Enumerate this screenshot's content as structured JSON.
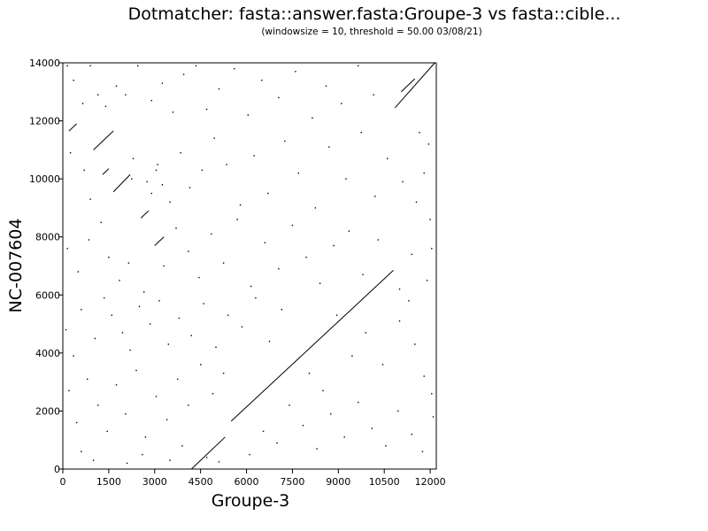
{
  "chart_data": {
    "type": "scatter",
    "title": "Dotmatcher: fasta::answer.fasta:Groupe-3 vs fasta::cible...",
    "subtitle": "(windowsize = 10, threshold = 50.00  03/08/21)",
    "xlabel": "Groupe-3",
    "ylabel": "NC-007604",
    "xlim": [
      0,
      12200
    ],
    "ylim": [
      0,
      14000
    ],
    "xticks": [
      "0",
      "1500",
      "3000",
      "4500",
      "6000",
      "7500",
      "9000",
      "10500",
      "12000"
    ],
    "xtick_values": [
      0,
      1500,
      3000,
      4500,
      6000,
      7500,
      9000,
      10500,
      12000
    ],
    "yticks": [
      "0",
      "2000",
      "4000",
      "6000",
      "8000",
      "10000",
      "12000",
      "14000"
    ],
    "ytick_values": [
      0,
      2000,
      4000,
      6000,
      8000,
      10000,
      12000,
      14000
    ],
    "grid": false,
    "segments": [
      {
        "x": [
          4200,
          5300
        ],
        "y": [
          0,
          1100
        ]
      },
      {
        "x": [
          5500,
          10800
        ],
        "y": [
          1650,
          6850
        ]
      },
      {
        "x": [
          10850,
          12150
        ],
        "y": [
          12450,
          14000
        ]
      },
      {
        "x": [
          1000,
          1650
        ],
        "y": [
          11000,
          11650
        ]
      },
      {
        "x": [
          1650,
          2200
        ],
        "y": [
          9550,
          10150
        ]
      },
      {
        "x": [
          200,
          450
        ],
        "y": [
          11650,
          11900
        ]
      },
      {
        "x": [
          3000,
          3300
        ],
        "y": [
          7700,
          8000
        ]
      },
      {
        "x": [
          2550,
          2800
        ],
        "y": [
          8650,
          8900
        ]
      },
      {
        "x": [
          1300,
          1500
        ],
        "y": [
          10150,
          10350
        ]
      },
      {
        "x": [
          11050,
          11500
        ],
        "y": [
          13000,
          13450
        ]
      }
    ],
    "points": [
      {
        "x": 150,
        "y": 13900
      },
      {
        "x": 350,
        "y": 13400
      },
      {
        "x": 650,
        "y": 12600
      },
      {
        "x": 900,
        "y": 13900
      },
      {
        "x": 1150,
        "y": 12900
      },
      {
        "x": 1400,
        "y": 12500
      },
      {
        "x": 1750,
        "y": 13200
      },
      {
        "x": 2050,
        "y": 12900
      },
      {
        "x": 2450,
        "y": 13900
      },
      {
        "x": 2900,
        "y": 12700
      },
      {
        "x": 3250,
        "y": 13300
      },
      {
        "x": 3600,
        "y": 12300
      },
      {
        "x": 3950,
        "y": 13600
      },
      {
        "x": 4350,
        "y": 13900
      },
      {
        "x": 4700,
        "y": 12400
      },
      {
        "x": 5100,
        "y": 13100
      },
      {
        "x": 5600,
        "y": 13800
      },
      {
        "x": 6050,
        "y": 12200
      },
      {
        "x": 6500,
        "y": 13400
      },
      {
        "x": 7050,
        "y": 12800
      },
      {
        "x": 7600,
        "y": 13700
      },
      {
        "x": 8150,
        "y": 12100
      },
      {
        "x": 8600,
        "y": 13200
      },
      {
        "x": 9100,
        "y": 12600
      },
      {
        "x": 9650,
        "y": 13900
      },
      {
        "x": 10150,
        "y": 12900
      },
      {
        "x": 11650,
        "y": 11600
      },
      {
        "x": 11950,
        "y": 11200
      },
      {
        "x": 250,
        "y": 10900
      },
      {
        "x": 700,
        "y": 10300
      },
      {
        "x": 900,
        "y": 9300
      },
      {
        "x": 1250,
        "y": 8500
      },
      {
        "x": 2300,
        "y": 10700
      },
      {
        "x": 2750,
        "y": 9900
      },
      {
        "x": 3100,
        "y": 10500
      },
      {
        "x": 3500,
        "y": 9200
      },
      {
        "x": 3850,
        "y": 10900
      },
      {
        "x": 4150,
        "y": 9700
      },
      {
        "x": 4550,
        "y": 10300
      },
      {
        "x": 4950,
        "y": 11400
      },
      {
        "x": 5350,
        "y": 10500
      },
      {
        "x": 5800,
        "y": 9100
      },
      {
        "x": 6250,
        "y": 10800
      },
      {
        "x": 6700,
        "y": 9500
      },
      {
        "x": 7250,
        "y": 11300
      },
      {
        "x": 7700,
        "y": 10200
      },
      {
        "x": 8250,
        "y": 9000
      },
      {
        "x": 8700,
        "y": 11100
      },
      {
        "x": 9250,
        "y": 10000
      },
      {
        "x": 9750,
        "y": 11600
      },
      {
        "x": 10200,
        "y": 9400
      },
      {
        "x": 10600,
        "y": 10700
      },
      {
        "x": 11100,
        "y": 9900
      },
      {
        "x": 11550,
        "y": 9200
      },
      {
        "x": 12000,
        "y": 8600
      },
      {
        "x": 11800,
        "y": 10200
      },
      {
        "x": 150,
        "y": 7600
      },
      {
        "x": 500,
        "y": 6800
      },
      {
        "x": 850,
        "y": 7900
      },
      {
        "x": 1500,
        "y": 7300
      },
      {
        "x": 1850,
        "y": 6500
      },
      {
        "x": 2150,
        "y": 7100
      },
      {
        "x": 2650,
        "y": 6100
      },
      {
        "x": 3300,
        "y": 7000
      },
      {
        "x": 3700,
        "y": 8300
      },
      {
        "x": 4100,
        "y": 7500
      },
      {
        "x": 4450,
        "y": 6600
      },
      {
        "x": 4850,
        "y": 8100
      },
      {
        "x": 5250,
        "y": 7100
      },
      {
        "x": 5700,
        "y": 8600
      },
      {
        "x": 6150,
        "y": 6300
      },
      {
        "x": 6600,
        "y": 7800
      },
      {
        "x": 7050,
        "y": 6900
      },
      {
        "x": 7500,
        "y": 8400
      },
      {
        "x": 7950,
        "y": 7300
      },
      {
        "x": 8400,
        "y": 6400
      },
      {
        "x": 8850,
        "y": 7700
      },
      {
        "x": 9350,
        "y": 8200
      },
      {
        "x": 9800,
        "y": 6700
      },
      {
        "x": 10300,
        "y": 7900
      },
      {
        "x": 11000,
        "y": 6200
      },
      {
        "x": 11400,
        "y": 7400
      },
      {
        "x": 11900,
        "y": 6500
      },
      {
        "x": 12050,
        "y": 7600
      },
      {
        "x": 100,
        "y": 4800
      },
      {
        "x": 350,
        "y": 3900
      },
      {
        "x": 600,
        "y": 5500
      },
      {
        "x": 1050,
        "y": 4500
      },
      {
        "x": 1350,
        "y": 5900
      },
      {
        "x": 1600,
        "y": 5300
      },
      {
        "x": 1950,
        "y": 4700
      },
      {
        "x": 2200,
        "y": 4100
      },
      {
        "x": 2500,
        "y": 5600
      },
      {
        "x": 2850,
        "y": 5000
      },
      {
        "x": 3150,
        "y": 5800
      },
      {
        "x": 3450,
        "y": 4300
      },
      {
        "x": 3800,
        "y": 5200
      },
      {
        "x": 4200,
        "y": 4600
      },
      {
        "x": 4600,
        "y": 5700
      },
      {
        "x": 5000,
        "y": 4200
      },
      {
        "x": 5400,
        "y": 5300
      },
      {
        "x": 5850,
        "y": 4900
      },
      {
        "x": 6300,
        "y": 5900
      },
      {
        "x": 6750,
        "y": 4400
      },
      {
        "x": 7150,
        "y": 5500
      },
      {
        "x": 8050,
        "y": 3300
      },
      {
        "x": 8500,
        "y": 2700
      },
      {
        "x": 8950,
        "y": 5300
      },
      {
        "x": 9450,
        "y": 3900
      },
      {
        "x": 9900,
        "y": 4700
      },
      {
        "x": 10450,
        "y": 3600
      },
      {
        "x": 11000,
        "y": 5100
      },
      {
        "x": 11500,
        "y": 4300
      },
      {
        "x": 11800,
        "y": 3200
      },
      {
        "x": 12050,
        "y": 2600
      },
      {
        "x": 11300,
        "y": 5800
      },
      {
        "x": 200,
        "y": 2700
      },
      {
        "x": 450,
        "y": 1600
      },
      {
        "x": 800,
        "y": 3100
      },
      {
        "x": 1150,
        "y": 2200
      },
      {
        "x": 1450,
        "y": 1300
      },
      {
        "x": 1750,
        "y": 2900
      },
      {
        "x": 2050,
        "y": 1900
      },
      {
        "x": 2400,
        "y": 3400
      },
      {
        "x": 2700,
        "y": 1100
      },
      {
        "x": 3050,
        "y": 2500
      },
      {
        "x": 3400,
        "y": 1700
      },
      {
        "x": 3750,
        "y": 3100
      },
      {
        "x": 4100,
        "y": 2200
      },
      {
        "x": 4500,
        "y": 3600
      },
      {
        "x": 4900,
        "y": 2600
      },
      {
        "x": 5250,
        "y": 3300
      },
      {
        "x": 6100,
        "y": 500
      },
      {
        "x": 6550,
        "y": 1300
      },
      {
        "x": 7000,
        "y": 900
      },
      {
        "x": 7400,
        "y": 2200
      },
      {
        "x": 7850,
        "y": 1500
      },
      {
        "x": 8300,
        "y": 700
      },
      {
        "x": 8750,
        "y": 1900
      },
      {
        "x": 9200,
        "y": 1100
      },
      {
        "x": 9650,
        "y": 2300
      },
      {
        "x": 10100,
        "y": 1400
      },
      {
        "x": 10550,
        "y": 800
      },
      {
        "x": 10950,
        "y": 2000
      },
      {
        "x": 11400,
        "y": 1200
      },
      {
        "x": 11750,
        "y": 600
      },
      {
        "x": 12100,
        "y": 1800
      },
      {
        "x": 600,
        "y": 600
      },
      {
        "x": 1000,
        "y": 300
      },
      {
        "x": 2100,
        "y": 200
      },
      {
        "x": 2600,
        "y": 500
      },
      {
        "x": 3500,
        "y": 300
      },
      {
        "x": 3900,
        "y": 800
      },
      {
        "x": 4700,
        "y": 400
      },
      {
        "x": 5100,
        "y": 250
      },
      {
        "x": 3050,
        "y": 10300
      },
      {
        "x": 2900,
        "y": 9500
      },
      {
        "x": 2250,
        "y": 10000
      },
      {
        "x": 3250,
        "y": 9800
      }
    ]
  }
}
